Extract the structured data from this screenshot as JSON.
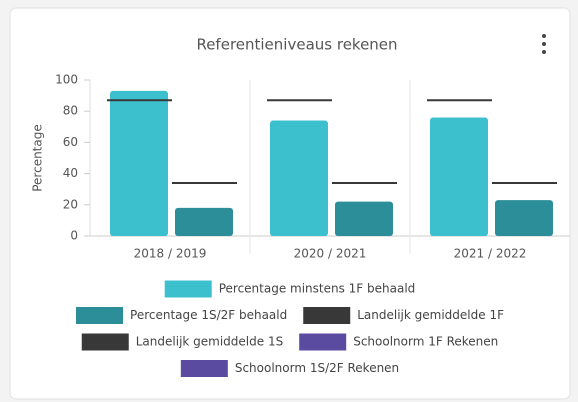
{
  "chart_data": {
    "type": "bar",
    "title": "Referentieniveaus rekenen",
    "y_label": "Percentage",
    "categories": [
      "2018 / 2019",
      "2020 / 2021",
      "2021 / 2022"
    ],
    "series": [
      {
        "name": "Percentage minstens 1F behaald",
        "type": "bar",
        "color": "#3cc0cd",
        "values": [
          93,
          74,
          76
        ]
      },
      {
        "name": "Percentage 1S/2F behaald",
        "type": "bar",
        "color": "#2b8e98",
        "values": [
          18,
          22,
          23
        ]
      },
      {
        "name": "Landelijk gemiddelde 1F",
        "type": "line",
        "color": "#383838",
        "values": [
          87,
          87,
          87
        ]
      },
      {
        "name": "Landelijk gemiddelde 1S",
        "type": "line",
        "color": "#383838",
        "values": [
          34,
          34,
          34
        ]
      },
      {
        "name": "Schoolnorm 1F Rekenen",
        "type": "line",
        "color": "#5b4ba0",
        "values": [
          null,
          null,
          null
        ]
      },
      {
        "name": "Schoolnorm 1S/2F Rekenen",
        "type": "line",
        "color": "#5b4ba0",
        "values": [
          null,
          null,
          null
        ]
      }
    ],
    "ylim": [
      0,
      100
    ],
    "yticks": [
      0,
      20,
      40,
      60,
      80,
      100
    ],
    "legend": "bottom"
  }
}
